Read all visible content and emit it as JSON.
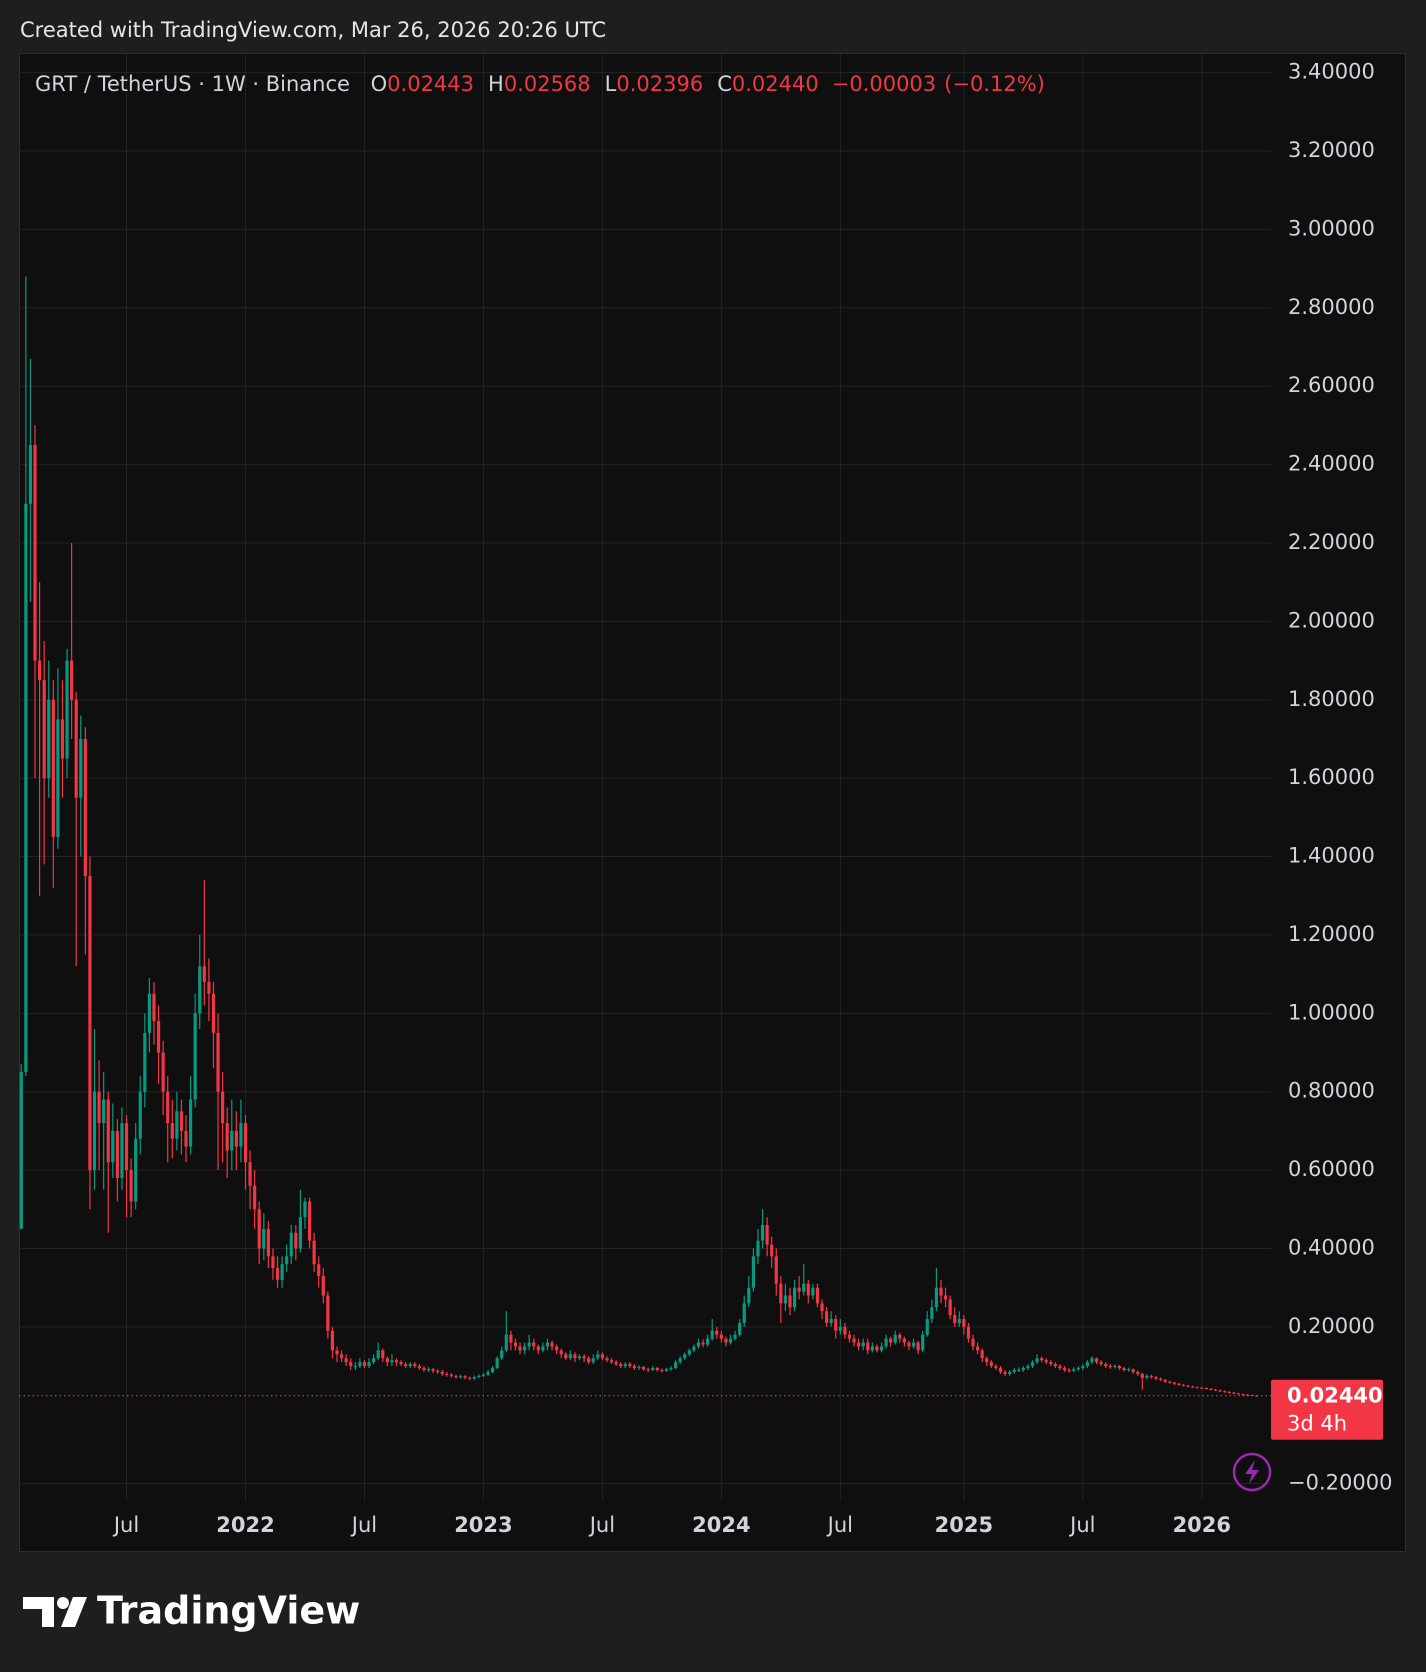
{
  "header": {
    "watermark": "Created with TradingView.com, Mar 26, 2026 20:26 UTC"
  },
  "footer": {
    "logo": "TradingView"
  },
  "chart_data": {
    "type": "candlestick",
    "title": "GRT / TetherUS · 1W · Binance",
    "legend": [
      {
        "key": "O",
        "value": 0.02443,
        "label": "0.02443"
      },
      {
        "key": "H",
        "value": 0.02568,
        "label": "0.02568"
      },
      {
        "key": "L",
        "value": 0.02396,
        "label": "0.02396"
      },
      {
        "key": "C",
        "value": 0.0244,
        "label": "0.02440"
      }
    ],
    "change": {
      "value": -3e-05,
      "label": "−0.00003"
    },
    "change_percent": {
      "value": -0.12,
      "label": "(−0.12%)"
    },
    "last_price": {
      "value": 0.0244,
      "label": "0.02440"
    },
    "countdown": "3d 4h",
    "up_color": "#089981",
    "down_color": "#f23645",
    "grid": true,
    "ylim": [
      -0.245,
      3.445
    ],
    "yticks": [
      {
        "value": -0.2,
        "label": "−0.20000"
      },
      {
        "value": 0.2,
        "label": "0.20000"
      },
      {
        "value": 0.4,
        "label": "0.40000"
      },
      {
        "value": 0.6,
        "label": "0.60000"
      },
      {
        "value": 0.8,
        "label": "0.80000"
      },
      {
        "value": 1,
        "label": "1.00000"
      },
      {
        "value": 1.2,
        "label": "1.20000"
      },
      {
        "value": 1.4,
        "label": "1.40000"
      },
      {
        "value": 1.6,
        "label": "1.60000"
      },
      {
        "value": 1.8,
        "label": "1.80000"
      },
      {
        "value": 2,
        "label": "2.00000"
      },
      {
        "value": 2.2,
        "label": "2.20000"
      },
      {
        "value": 2.4,
        "label": "2.40000"
      },
      {
        "value": 2.6,
        "label": "2.60000"
      },
      {
        "value": 2.8,
        "label": "2.80000"
      },
      {
        "value": 3,
        "label": "3.00000"
      },
      {
        "value": 3.2,
        "label": "3.20000"
      },
      {
        "value": 3.4,
        "label": "3.40000"
      }
    ],
    "categories": [
      null,
      null,
      null,
      null,
      null,
      null,
      null,
      null,
      null,
      null,
      null,
      null,
      null,
      null,
      null,
      null,
      null,
      null,
      null,
      null,
      null,
      null,
      null,
      "Jul",
      null,
      null,
      null,
      null,
      null,
      null,
      null,
      null,
      null,
      null,
      null,
      null,
      null,
      null,
      null,
      null,
      null,
      null,
      null,
      null,
      null,
      null,
      null,
      null,
      null,
      "2022",
      null,
      null,
      null,
      null,
      null,
      null,
      null,
      null,
      null,
      null,
      null,
      null,
      null,
      null,
      null,
      null,
      null,
      null,
      null,
      null,
      null,
      null,
      null,
      null,
      null,
      "Jul",
      null,
      null,
      null,
      null,
      null,
      null,
      null,
      null,
      null,
      null,
      null,
      null,
      null,
      null,
      null,
      null,
      null,
      null,
      null,
      null,
      null,
      null,
      null,
      null,
      null,
      "2023",
      null,
      null,
      null,
      null,
      null,
      null,
      null,
      null,
      null,
      null,
      null,
      null,
      null,
      null,
      null,
      null,
      null,
      null,
      null,
      null,
      null,
      null,
      null,
      null,
      null,
      "Jul",
      null,
      null,
      null,
      null,
      null,
      null,
      null,
      null,
      null,
      null,
      null,
      null,
      null,
      null,
      null,
      null,
      null,
      null,
      null,
      null,
      null,
      null,
      null,
      null,
      null,
      "2024",
      null,
      null,
      null,
      null,
      null,
      null,
      null,
      null,
      null,
      null,
      null,
      null,
      null,
      null,
      null,
      null,
      null,
      null,
      null,
      null,
      null,
      null,
      null,
      null,
      null,
      "Jul",
      null,
      null,
      null,
      null,
      null,
      null,
      null,
      null,
      null,
      null,
      null,
      null,
      null,
      null,
      null,
      null,
      null,
      null,
      null,
      null,
      null,
      null,
      null,
      null,
      null,
      null,
      "2025",
      null,
      null,
      null,
      null,
      null,
      null,
      null,
      null,
      null,
      null,
      null,
      null,
      null,
      null,
      null,
      null,
      null,
      null,
      null,
      null,
      null,
      null,
      null,
      null,
      null,
      "Jul",
      null,
      null,
      null,
      null,
      null,
      null,
      null,
      null,
      null,
      null,
      null,
      null,
      null,
      null,
      null,
      null,
      null,
      null,
      null,
      null,
      null,
      null,
      null,
      null,
      null,
      "2026",
      null,
      null,
      null,
      null,
      null,
      null,
      null,
      null,
      null,
      null,
      null,
      null
    ],
    "open": [
      0.45,
      0.85,
      2.3,
      2.45,
      1.9,
      1.85,
      1.6,
      1.8,
      1.45,
      1.75,
      1.65,
      1.9,
      1.8,
      1.55,
      1.7,
      1.35,
      0.6,
      0.8,
      0.72,
      0.78,
      0.62,
      0.7,
      0.58,
      0.72,
      0.6,
      0.52,
      0.68,
      0.8,
      0.95,
      1.05,
      0.98,
      0.9,
      0.8,
      0.72,
      0.68,
      0.75,
      0.7,
      0.66,
      0.78,
      1.0,
      1.12,
      1.08,
      1.05,
      0.95,
      0.8,
      0.72,
      0.65,
      0.7,
      0.66,
      0.72,
      0.62,
      0.56,
      0.5,
      0.4,
      0.45,
      0.38,
      0.35,
      0.32,
      0.36,
      0.38,
      0.44,
      0.4,
      0.48,
      0.52,
      0.42,
      0.36,
      0.33,
      0.28,
      0.19,
      0.14,
      0.13,
      0.12,
      0.11,
      0.1,
      0.1,
      0.11,
      0.1,
      0.11,
      0.12,
      0.14,
      0.12,
      0.11,
      0.115,
      0.11,
      0.105,
      0.1,
      0.105,
      0.1,
      0.095,
      0.09,
      0.092,
      0.088,
      0.085,
      0.08,
      0.078,
      0.075,
      0.072,
      0.074,
      0.07,
      0.068,
      0.072,
      0.075,
      0.078,
      0.085,
      0.095,
      0.12,
      0.14,
      0.18,
      0.16,
      0.15,
      0.14,
      0.15,
      0.16,
      0.15,
      0.14,
      0.15,
      0.16,
      0.15,
      0.14,
      0.13,
      0.12,
      0.13,
      0.12,
      0.125,
      0.12,
      0.11,
      0.12,
      0.13,
      0.12,
      0.115,
      0.11,
      0.105,
      0.1,
      0.105,
      0.1,
      0.095,
      0.098,
      0.092,
      0.09,
      0.095,
      0.09,
      0.088,
      0.092,
      0.095,
      0.11,
      0.12,
      0.13,
      0.14,
      0.15,
      0.16,
      0.155,
      0.17,
      0.19,
      0.18,
      0.17,
      0.16,
      0.17,
      0.18,
      0.21,
      0.26,
      0.3,
      0.38,
      0.42,
      0.46,
      0.41,
      0.38,
      0.31,
      0.26,
      0.28,
      0.25,
      0.3,
      0.29,
      0.31,
      0.28,
      0.3,
      0.26,
      0.24,
      0.21,
      0.22,
      0.19,
      0.2,
      0.18,
      0.17,
      0.16,
      0.15,
      0.16,
      0.14,
      0.15,
      0.14,
      0.15,
      0.17,
      0.16,
      0.18,
      0.17,
      0.16,
      0.15,
      0.16,
      0.14,
      0.18,
      0.22,
      0.25,
      0.3,
      0.28,
      0.27,
      0.23,
      0.21,
      0.22,
      0.2,
      0.17,
      0.15,
      0.14,
      0.12,
      0.11,
      0.1,
      0.095,
      0.085,
      0.08,
      0.085,
      0.09,
      0.09,
      0.095,
      0.1,
      0.11,
      0.12,
      0.115,
      0.11,
      0.105,
      0.1,
      0.095,
      0.09,
      0.088,
      0.092,
      0.095,
      0.1,
      0.11,
      0.12,
      0.11,
      0.105,
      0.1,
      0.098,
      0.1,
      0.095,
      0.09,
      0.092,
      0.085,
      0.08,
      0.07,
      0.075,
      0.072,
      0.068,
      0.065,
      0.06,
      0.058,
      0.055,
      0.052,
      0.05,
      0.048,
      0.046,
      0.045,
      0.044,
      0.042,
      0.04,
      0.038,
      0.036,
      0.034,
      0.032,
      0.03,
      0.028,
      0.027,
      0.026,
      0.02443
    ],
    "high": [
      0.87,
      2.88,
      2.67,
      2.5,
      2.1,
      1.95,
      1.9,
      1.85,
      1.88,
      1.85,
      1.93,
      2.2,
      1.82,
      1.76,
      1.73,
      1.4,
      0.96,
      0.88,
      0.85,
      0.8,
      0.77,
      0.73,
      0.76,
      0.74,
      0.63,
      0.72,
      0.84,
      1.0,
      1.09,
      1.08,
      1.02,
      0.93,
      0.84,
      0.78,
      0.8,
      0.78,
      0.74,
      0.84,
      1.05,
      1.2,
      1.34,
      1.14,
      1.08,
      1.0,
      0.85,
      0.76,
      0.78,
      0.75,
      0.78,
      0.74,
      0.65,
      0.6,
      0.52,
      0.49,
      0.47,
      0.4,
      0.38,
      0.38,
      0.41,
      0.46,
      0.46,
      0.55,
      0.53,
      0.53,
      0.44,
      0.38,
      0.35,
      0.29,
      0.2,
      0.15,
      0.14,
      0.13,
      0.12,
      0.11,
      0.12,
      0.115,
      0.12,
      0.13,
      0.16,
      0.145,
      0.125,
      0.13,
      0.12,
      0.115,
      0.11,
      0.11,
      0.11,
      0.105,
      0.1,
      0.097,
      0.095,
      0.092,
      0.09,
      0.085,
      0.082,
      0.078,
      0.078,
      0.077,
      0.073,
      0.076,
      0.079,
      0.082,
      0.09,
      0.1,
      0.125,
      0.15,
      0.24,
      0.19,
      0.17,
      0.16,
      0.16,
      0.18,
      0.17,
      0.155,
      0.16,
      0.17,
      0.165,
      0.155,
      0.145,
      0.135,
      0.14,
      0.135,
      0.13,
      0.13,
      0.125,
      0.13,
      0.14,
      0.135,
      0.125,
      0.12,
      0.115,
      0.11,
      0.11,
      0.11,
      0.105,
      0.102,
      0.1,
      0.096,
      0.1,
      0.098,
      0.094,
      0.096,
      0.1,
      0.115,
      0.125,
      0.135,
      0.145,
      0.155,
      0.17,
      0.168,
      0.18,
      0.22,
      0.2,
      0.19,
      0.175,
      0.18,
      0.19,
      0.22,
      0.28,
      0.33,
      0.4,
      0.45,
      0.5,
      0.48,
      0.43,
      0.4,
      0.33,
      0.31,
      0.3,
      0.32,
      0.33,
      0.36,
      0.32,
      0.31,
      0.31,
      0.27,
      0.25,
      0.24,
      0.23,
      0.22,
      0.21,
      0.19,
      0.18,
      0.17,
      0.17,
      0.17,
      0.16,
      0.155,
      0.16,
      0.18,
      0.175,
      0.19,
      0.185,
      0.175,
      0.165,
      0.17,
      0.165,
      0.19,
      0.24,
      0.27,
      0.35,
      0.32,
      0.3,
      0.28,
      0.25,
      0.24,
      0.23,
      0.21,
      0.18,
      0.16,
      0.145,
      0.125,
      0.115,
      0.105,
      0.1,
      0.09,
      0.09,
      0.095,
      0.097,
      0.1,
      0.105,
      0.115,
      0.13,
      0.125,
      0.12,
      0.115,
      0.11,
      0.105,
      0.1,
      0.095,
      0.097,
      0.1,
      0.105,
      0.115,
      0.125,
      0.122,
      0.115,
      0.11,
      0.105,
      0.104,
      0.103,
      0.098,
      0.096,
      0.094,
      0.088,
      0.083,
      0.08,
      0.078,
      0.075,
      0.071,
      0.067,
      0.063,
      0.06,
      0.057,
      0.054,
      0.052,
      0.05,
      0.048,
      0.047,
      0.046,
      0.044,
      0.042,
      0.04,
      0.038,
      0.036,
      0.034,
      0.032,
      0.03,
      0.029,
      0.027,
      0.02568
    ],
    "low": [
      0.45,
      0.84,
      2.05,
      1.6,
      1.3,
      1.38,
      1.55,
      1.32,
      1.42,
      1.55,
      1.6,
      1.7,
      1.12,
      1.4,
      1.15,
      0.5,
      0.55,
      0.6,
      0.55,
      0.44,
      0.58,
      0.52,
      0.55,
      0.48,
      0.48,
      0.5,
      0.64,
      0.76,
      0.9,
      0.92,
      0.82,
      0.74,
      0.62,
      0.63,
      0.65,
      0.64,
      0.62,
      0.64,
      0.76,
      0.96,
      1.02,
      0.98,
      0.86,
      0.6,
      0.62,
      0.58,
      0.6,
      0.6,
      0.62,
      0.55,
      0.5,
      0.45,
      0.36,
      0.37,
      0.35,
      0.32,
      0.3,
      0.3,
      0.34,
      0.36,
      0.37,
      0.39,
      0.45,
      0.4,
      0.34,
      0.3,
      0.26,
      0.17,
      0.12,
      0.11,
      0.11,
      0.1,
      0.09,
      0.09,
      0.095,
      0.095,
      0.095,
      0.105,
      0.115,
      0.11,
      0.1,
      0.1,
      0.1,
      0.1,
      0.095,
      0.095,
      0.095,
      0.09,
      0.085,
      0.085,
      0.082,
      0.08,
      0.075,
      0.073,
      0.07,
      0.068,
      0.068,
      0.066,
      0.064,
      0.065,
      0.069,
      0.072,
      0.075,
      0.082,
      0.092,
      0.115,
      0.135,
      0.14,
      0.14,
      0.13,
      0.13,
      0.14,
      0.14,
      0.13,
      0.135,
      0.14,
      0.14,
      0.13,
      0.12,
      0.115,
      0.115,
      0.11,
      0.115,
      0.11,
      0.105,
      0.105,
      0.115,
      0.115,
      0.11,
      0.105,
      0.1,
      0.095,
      0.095,
      0.095,
      0.09,
      0.09,
      0.088,
      0.085,
      0.087,
      0.086,
      0.084,
      0.085,
      0.088,
      0.092,
      0.105,
      0.115,
      0.125,
      0.135,
      0.145,
      0.148,
      0.15,
      0.165,
      0.17,
      0.16,
      0.15,
      0.155,
      0.165,
      0.175,
      0.2,
      0.25,
      0.29,
      0.36,
      0.4,
      0.38,
      0.35,
      0.28,
      0.21,
      0.24,
      0.23,
      0.24,
      0.27,
      0.28,
      0.26,
      0.27,
      0.25,
      0.22,
      0.2,
      0.2,
      0.17,
      0.18,
      0.17,
      0.16,
      0.15,
      0.14,
      0.14,
      0.13,
      0.135,
      0.135,
      0.135,
      0.145,
      0.15,
      0.155,
      0.16,
      0.15,
      0.14,
      0.145,
      0.13,
      0.135,
      0.175,
      0.21,
      0.24,
      0.26,
      0.25,
      0.22,
      0.2,
      0.2,
      0.18,
      0.16,
      0.14,
      0.13,
      0.11,
      0.1,
      0.095,
      0.09,
      0.08,
      0.075,
      0.075,
      0.08,
      0.085,
      0.085,
      0.09,
      0.095,
      0.105,
      0.11,
      0.105,
      0.1,
      0.095,
      0.09,
      0.085,
      0.083,
      0.085,
      0.088,
      0.09,
      0.095,
      0.105,
      0.105,
      0.1,
      0.095,
      0.093,
      0.094,
      0.09,
      0.086,
      0.086,
      0.08,
      0.075,
      0.04,
      0.066,
      0.068,
      0.064,
      0.062,
      0.057,
      0.055,
      0.052,
      0.05,
      0.048,
      0.046,
      0.044,
      0.043,
      0.042,
      0.04,
      0.038,
      0.036,
      0.034,
      0.032,
      0.03,
      0.028,
      0.027,
      0.025,
      0.025,
      0.0235,
      0.02396
    ],
    "close": [
      0.85,
      2.3,
      2.45,
      1.9,
      1.85,
      1.6,
      1.8,
      1.45,
      1.75,
      1.65,
      1.9,
      1.8,
      1.55,
      1.7,
      1.35,
      0.6,
      0.8,
      0.72,
      0.78,
      0.62,
      0.7,
      0.58,
      0.72,
      0.6,
      0.52,
      0.68,
      0.8,
      0.95,
      1.05,
      0.98,
      0.9,
      0.8,
      0.72,
      0.68,
      0.75,
      0.7,
      0.66,
      0.78,
      1.0,
      1.12,
      1.08,
      1.05,
      0.95,
      0.8,
      0.72,
      0.65,
      0.7,
      0.66,
      0.72,
      0.62,
      0.56,
      0.5,
      0.4,
      0.45,
      0.38,
      0.35,
      0.32,
      0.36,
      0.38,
      0.44,
      0.4,
      0.48,
      0.52,
      0.42,
      0.36,
      0.33,
      0.28,
      0.19,
      0.14,
      0.13,
      0.12,
      0.11,
      0.1,
      0.1,
      0.11,
      0.1,
      0.11,
      0.12,
      0.14,
      0.12,
      0.11,
      0.115,
      0.11,
      0.105,
      0.1,
      0.105,
      0.1,
      0.095,
      0.09,
      0.092,
      0.088,
      0.085,
      0.08,
      0.078,
      0.075,
      0.072,
      0.074,
      0.07,
      0.068,
      0.072,
      0.075,
      0.078,
      0.085,
      0.095,
      0.12,
      0.14,
      0.18,
      0.16,
      0.15,
      0.14,
      0.15,
      0.16,
      0.15,
      0.14,
      0.15,
      0.16,
      0.15,
      0.14,
      0.13,
      0.12,
      0.13,
      0.12,
      0.125,
      0.12,
      0.11,
      0.12,
      0.13,
      0.12,
      0.115,
      0.11,
      0.105,
      0.1,
      0.105,
      0.1,
      0.095,
      0.098,
      0.092,
      0.09,
      0.095,
      0.09,
      0.088,
      0.092,
      0.095,
      0.11,
      0.12,
      0.13,
      0.14,
      0.15,
      0.16,
      0.155,
      0.17,
      0.19,
      0.18,
      0.17,
      0.16,
      0.17,
      0.18,
      0.21,
      0.26,
      0.3,
      0.38,
      0.42,
      0.46,
      0.41,
      0.38,
      0.31,
      0.26,
      0.28,
      0.25,
      0.3,
      0.29,
      0.31,
      0.28,
      0.3,
      0.26,
      0.24,
      0.21,
      0.22,
      0.19,
      0.2,
      0.18,
      0.17,
      0.16,
      0.15,
      0.16,
      0.14,
      0.15,
      0.14,
      0.15,
      0.17,
      0.16,
      0.18,
      0.17,
      0.16,
      0.15,
      0.16,
      0.14,
      0.18,
      0.22,
      0.25,
      0.3,
      0.28,
      0.27,
      0.23,
      0.21,
      0.22,
      0.2,
      0.17,
      0.15,
      0.14,
      0.12,
      0.11,
      0.1,
      0.095,
      0.085,
      0.08,
      0.085,
      0.09,
      0.09,
      0.095,
      0.1,
      0.11,
      0.12,
      0.115,
      0.11,
      0.105,
      0.1,
      0.095,
      0.09,
      0.088,
      0.092,
      0.095,
      0.1,
      0.11,
      0.12,
      0.11,
      0.105,
      0.1,
      0.098,
      0.1,
      0.095,
      0.09,
      0.092,
      0.085,
      0.08,
      0.07,
      0.075,
      0.072,
      0.068,
      0.065,
      0.06,
      0.058,
      0.055,
      0.052,
      0.05,
      0.048,
      0.046,
      0.045,
      0.044,
      0.042,
      0.04,
      0.038,
      0.036,
      0.034,
      0.032,
      0.03,
      0.028,
      0.027,
      0.026,
      0.02443,
      0.0244
    ]
  }
}
